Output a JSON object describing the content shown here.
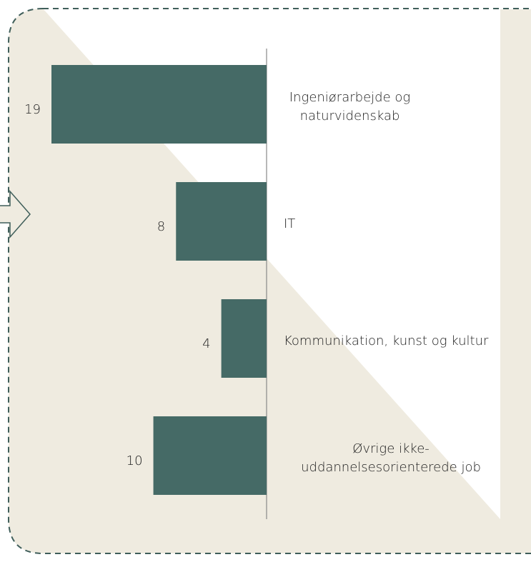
{
  "chart_data": {
    "type": "bar",
    "orientation": "horizontal",
    "categories": [
      "Ingeniørarbejde og naturvidenskab",
      "IT",
      "Kommunikation, kunst og kultur",
      "Øvrige ikke-uddannelsesorienterede job"
    ],
    "values": [
      19,
      8,
      4,
      10
    ],
    "color": "#456a66",
    "xlim": [
      0,
      19
    ]
  }
}
